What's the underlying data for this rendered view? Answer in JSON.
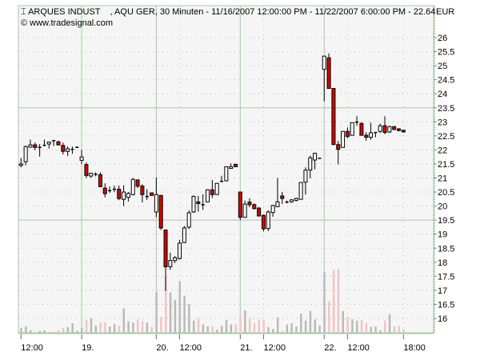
{
  "header": {
    "title": "ARQUES INDUST    , AQU GER, 30 Minuten - 11/16/2007 12:00:00 PM - 11/22/2007 6:00:00 PM - 22.64",
    "copyright": "© www.tradesignal.com",
    "currency": "EUR",
    "icon": "candlestick-icon"
  },
  "chart_data": {
    "type": "candlestick",
    "interval": "30 Minuten",
    "ylim": [
      15.6,
      26.4
    ],
    "yticks": [
      "26",
      "25.5",
      "25",
      "24.5",
      "24",
      "23.5",
      "23",
      "22.5",
      "22",
      "21.5",
      "21",
      "20.5",
      "20",
      "19.5",
      "19",
      "18.5",
      "18",
      "17.5",
      "17",
      "16.5",
      "16"
    ],
    "major_gridlines_y": [
      23.5,
      19.5
    ],
    "xlabels": [
      {
        "label": "12:00",
        "bar": 0
      },
      {
        "label": "19.",
        "bar": 13
      },
      {
        "label": "20.",
        "bar": 29
      },
      {
        "label": "12:00",
        "bar": 34
      },
      {
        "label": "21.",
        "bar": 47
      },
      {
        "label": "12:00",
        "bar": 52
      },
      {
        "label": "22.",
        "bar": 65
      },
      {
        "label": "12:00",
        "bar": 70
      },
      {
        "label": "18:00",
        "bar": 82
      }
    ],
    "day_start_bars": [
      13,
      29,
      47,
      65
    ],
    "colors": {
      "up_body": "#ffffff",
      "down_body": "#d40000",
      "wick": "#000000",
      "volume_up": "#b8b8b8",
      "volume_down": "#f0c4c4",
      "grid": "#a8c8a8",
      "plot_bg": "#f5f5f5"
    },
    "ohlc_columns": [
      "open",
      "high",
      "low",
      "close"
    ],
    "ohlc": [
      [
        21.45,
        21.72,
        21.38,
        21.5
      ],
      [
        21.58,
        22.15,
        21.45,
        22.12
      ],
      [
        22.1,
        22.37,
        22.08,
        22.18
      ],
      [
        22.18,
        22.26,
        21.99,
        22.09
      ],
      [
        22.09,
        22.21,
        21.76,
        22.09
      ],
      [
        22.16,
        22.37,
        22.14,
        22.16
      ],
      [
        22.21,
        22.28,
        22.05,
        22.28
      ],
      [
        22.33,
        22.35,
        22.14,
        22.33
      ],
      [
        22.29,
        22.33,
        22.16,
        22.18
      ],
      [
        22.16,
        22.26,
        21.84,
        21.95
      ],
      [
        21.95,
        22.12,
        21.78,
        22.04
      ],
      [
        22.02,
        22.12,
        21.86,
        22.02
      ],
      [
        22.09,
        22.12,
        22.07,
        22.09
      ],
      [
        21.63,
        22.0,
        21.5,
        21.75
      ],
      [
        21.48,
        21.55,
        21.0,
        21.09
      ],
      [
        21.07,
        21.18,
        21.0,
        21.17
      ],
      [
        21.13,
        21.2,
        21.06,
        21.13
      ],
      [
        21.12,
        21.2,
        20.69,
        20.69
      ],
      [
        20.64,
        20.81,
        20.31,
        20.44
      ],
      [
        20.55,
        20.7,
        20.47,
        20.55
      ],
      [
        20.6,
        20.73,
        20.5,
        20.6
      ],
      [
        20.6,
        20.73,
        20.21,
        20.27
      ],
      [
        20.24,
        20.74,
        20.0,
        20.5
      ],
      [
        20.31,
        20.5,
        20.16,
        20.45
      ],
      [
        20.41,
        21.0,
        20.38,
        20.95
      ],
      [
        20.93,
        20.95,
        20.64,
        20.71
      ],
      [
        20.71,
        20.78,
        20.13,
        20.41
      ],
      [
        20.34,
        20.6,
        20.22,
        20.34
      ],
      [
        20.47,
        20.48,
        20.37,
        20.38
      ],
      [
        19.79,
        21.02,
        19.6,
        20.41
      ],
      [
        20.38,
        20.38,
        19.15,
        19.22
      ],
      [
        19.15,
        19.15,
        16.98,
        17.84
      ],
      [
        17.84,
        18.34,
        17.73,
        18.06
      ],
      [
        18.06,
        18.22,
        17.97,
        18.16
      ],
      [
        18.13,
        18.8,
        18.1,
        18.68
      ],
      [
        18.7,
        19.29,
        18.68,
        19.22
      ],
      [
        19.25,
        19.85,
        19.18,
        19.76
      ],
      [
        19.79,
        20.38,
        19.76,
        20.34
      ],
      [
        20.15,
        20.36,
        19.8,
        20.09
      ],
      [
        20.05,
        20.42,
        19.86,
        20.05
      ],
      [
        20.15,
        20.6,
        20.15,
        20.58
      ],
      [
        20.58,
        20.93,
        20.29,
        20.41
      ],
      [
        20.41,
        20.81,
        20.41,
        20.81
      ],
      [
        20.88,
        21.08,
        20.88,
        20.88
      ],
      [
        20.9,
        21.4,
        20.88,
        21.4
      ],
      [
        21.34,
        21.52,
        21.33,
        21.4
      ],
      [
        21.49,
        21.49,
        21.4,
        21.4
      ],
      [
        20.5,
        20.5,
        19.5,
        19.6
      ],
      [
        19.6,
        20.2,
        19.6,
        20.07
      ],
      [
        20.14,
        20.28,
        19.96,
        20.05
      ],
      [
        20.05,
        20.1,
        19.88,
        19.91
      ],
      [
        19.93,
        19.96,
        19.62,
        19.65
      ],
      [
        19.67,
        19.7,
        19.1,
        19.19
      ],
      [
        19.2,
        19.85,
        19.11,
        19.79
      ],
      [
        19.77,
        20.05,
        19.62,
        20.02
      ],
      [
        19.98,
        21.0,
        19.98,
        20.15
      ],
      [
        20.36,
        20.5,
        20.08,
        20.27
      ],
      [
        20.14,
        20.2,
        20.1,
        20.14
      ],
      [
        20.15,
        20.25,
        20.12,
        20.22
      ],
      [
        20.2,
        20.3,
        20.17,
        20.27
      ],
      [
        20.24,
        20.84,
        20.24,
        20.84
      ],
      [
        20.85,
        21.38,
        20.41,
        21.28
      ],
      [
        21.28,
        21.8,
        20.99,
        21.72
      ],
      [
        21.64,
        21.9,
        21.31,
        21.88
      ],
      [
        21.7,
        21.71,
        21.69,
        21.7
      ],
      [
        24.87,
        25.34,
        23.73,
        25.34
      ],
      [
        25.28,
        25.44,
        24.19,
        24.19
      ],
      [
        24.19,
        24.19,
        22.19,
        22.19
      ],
      [
        22.19,
        22.32,
        21.48,
        22.02
      ],
      [
        22.09,
        22.66,
        22.09,
        22.66
      ],
      [
        22.66,
        22.8,
        22.41,
        22.48
      ],
      [
        22.52,
        22.97,
        22.52,
        22.97
      ],
      [
        22.99,
        23.2,
        22.86,
        22.99
      ],
      [
        22.94,
        23.0,
        22.52,
        22.52
      ],
      [
        22.52,
        22.63,
        22.33,
        22.45
      ],
      [
        22.45,
        22.97,
        22.36,
        22.61
      ],
      [
        22.62,
        22.64,
        22.45,
        22.62
      ],
      [
        22.66,
        22.94,
        22.6,
        22.86
      ],
      [
        22.86,
        23.2,
        22.56,
        22.62
      ],
      [
        22.64,
        22.86,
        22.6,
        22.83
      ],
      [
        22.83,
        22.85,
        22.7,
        22.73
      ],
      [
        22.75,
        22.78,
        22.66,
        22.69
      ],
      [
        22.7,
        22.72,
        22.62,
        22.64
      ]
    ],
    "volume_relative_percent": [
      8,
      10,
      4,
      1,
      3,
      4,
      1,
      1,
      4,
      8,
      9,
      15,
      3,
      8,
      20,
      23,
      11,
      16,
      16,
      10,
      14,
      11,
      38,
      18,
      16,
      21,
      18,
      16,
      9,
      63,
      25,
      88,
      63,
      51,
      81,
      58,
      45,
      19,
      23,
      13,
      10,
      10,
      5,
      11,
      20,
      13,
      13,
      26,
      35,
      23,
      15,
      20,
      20,
      9,
      6,
      24,
      3,
      13,
      15,
      10,
      30,
      19,
      34,
      21,
      11,
      95,
      49,
      98,
      100,
      34,
      25,
      21,
      19,
      20,
      15,
      9,
      10,
      4,
      19,
      29,
      10,
      11,
      6
    ]
  }
}
